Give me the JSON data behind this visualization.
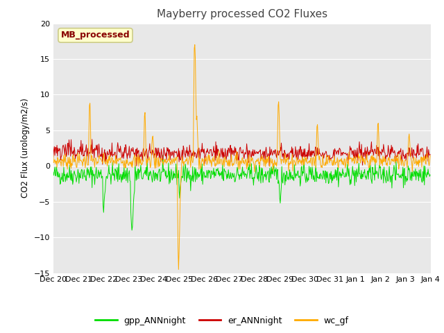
{
  "title": "Mayberry processed CO2 Fluxes",
  "ylabel": "CO2 Flux (urology/m2/s)",
  "ylim": [
    -15,
    20
  ],
  "yticks": [
    -15,
    -10,
    -5,
    0,
    5,
    10,
    15,
    20
  ],
  "legend_label": "MB_processed",
  "legend_label_color": "#880000",
  "legend_box_facecolor": "#ffffcc",
  "legend_box_edgecolor": "#cccc88",
  "bg_color": "#e8e8e8",
  "series": [
    {
      "name": "gpp_ANNnight",
      "color": "#00dd00"
    },
    {
      "name": "er_ANNnight",
      "color": "#cc0000"
    },
    {
      "name": "wc_gf",
      "color": "#ffaa00"
    }
  ],
  "n_points": 720,
  "xtick_labels": [
    "Dec 20",
    "Dec 21",
    "Dec 22",
    "Dec 23",
    "Dec 24",
    "Dec 25",
    "Dec 26",
    "Dec 27",
    "Dec 28",
    "Dec 29",
    "Dec 30",
    "Dec 31",
    "Jan 1",
    "Jan 2",
    "Jan 3",
    "Jan 4"
  ],
  "xtick_positions": [
    0,
    48,
    96,
    144,
    192,
    240,
    288,
    336,
    384,
    432,
    480,
    528,
    576,
    624,
    672,
    720
  ]
}
